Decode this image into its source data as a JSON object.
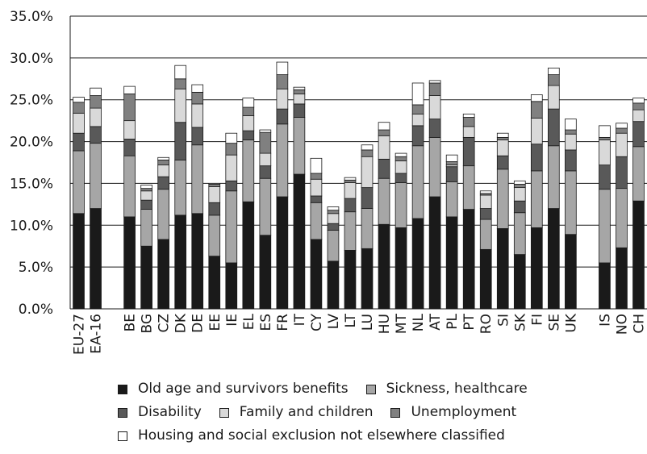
{
  "chart_data": {
    "type": "bar",
    "stacked": true,
    "title": "",
    "xlabel": "",
    "ylabel": "",
    "ylim": [
      0,
      35
    ],
    "yticks": [
      "0.0%",
      "5.0%",
      "10.0%",
      "15.0%",
      "20.0%",
      "25.0%",
      "30.0%",
      "35.0%"
    ],
    "grid": true,
    "legend_position": "bottom",
    "categories": [
      "EU-27",
      "EA-16",
      "",
      "BE",
      "BG",
      "CZ",
      "DK",
      "DE",
      "EE",
      "IE",
      "EL",
      "ES",
      "FR",
      "IT",
      "CY",
      "LV",
      "LT",
      "LU",
      "HU",
      "MT",
      "NL",
      "AT",
      "PL",
      "PT",
      "RO",
      "SI",
      "SK",
      "FI",
      "SE",
      "UK",
      "",
      "IS",
      "NO",
      "CH"
    ],
    "series": [
      {
        "name": "Old age and survivors benefits",
        "color": "#1a1a1a",
        "values": [
          11.4,
          12.0,
          null,
          11.0,
          7.5,
          8.3,
          11.2,
          11.4,
          6.3,
          5.5,
          12.8,
          8.8,
          13.4,
          16.1,
          8.3,
          5.7,
          7.0,
          7.2,
          10.1,
          9.7,
          10.8,
          13.4,
          11.0,
          11.9,
          7.1,
          9.6,
          6.5,
          9.7,
          12.0,
          8.9,
          null,
          5.5,
          7.3,
          12.9
        ]
      },
      {
        "name": "Sickness, healthcare",
        "color": "#a6a6a6",
        "values": [
          7.5,
          7.8,
          null,
          7.3,
          4.4,
          6.0,
          6.6,
          8.2,
          4.9,
          8.6,
          7.4,
          6.8,
          8.7,
          6.8,
          4.4,
          3.7,
          4.6,
          4.8,
          5.5,
          5.4,
          8.7,
          7.1,
          4.2,
          5.2,
          3.6,
          7.1,
          5.0,
          6.8,
          7.5,
          7.6,
          null,
          8.8,
          7.1,
          6.5
        ]
      },
      {
        "name": "Disability",
        "color": "#595959",
        "values": [
          2.1,
          2.0,
          null,
          2.0,
          1.1,
          1.5,
          4.5,
          2.1,
          1.5,
          1.2,
          1.1,
          1.5,
          1.8,
          1.6,
          0.8,
          0.8,
          1.6,
          2.5,
          2.3,
          1.1,
          2.4,
          2.2,
          1.8,
          3.4,
          1.3,
          1.6,
          1.4,
          3.2,
          4.4,
          2.5,
          null,
          2.9,
          3.8,
          3.0
        ]
      },
      {
        "name": "Family and children",
        "color": "#d9d9d9",
        "values": [
          2.4,
          2.2,
          null,
          2.2,
          1.1,
          1.4,
          4.0,
          2.8,
          1.9,
          3.1,
          1.8,
          1.5,
          2.4,
          1.2,
          2.0,
          1.2,
          1.9,
          3.7,
          2.8,
          1.5,
          1.4,
          2.8,
          0.2,
          1.3,
          1.6,
          1.9,
          1.6,
          3.1,
          2.8,
          1.9,
          null,
          3.0,
          2.8,
          1.4
        ]
      },
      {
        "name": "Unemployment",
        "color": "#808080",
        "values": [
          1.3,
          1.5,
          null,
          3.2,
          0.3,
          0.6,
          1.2,
          1.4,
          0.3,
          1.4,
          1.0,
          2.5,
          1.7,
          0.5,
          0.7,
          0.4,
          0.3,
          0.8,
          0.7,
          0.5,
          1.1,
          1.5,
          0.4,
          1.1,
          0.2,
          0.3,
          0.4,
          2.0,
          1.3,
          0.5,
          null,
          0.3,
          0.6,
          0.8
        ]
      },
      {
        "name": "Housing and social exclusion not elsewhere classified",
        "color": "#ffffff",
        "values": [
          0.6,
          0.9,
          null,
          0.9,
          0.4,
          0.3,
          1.6,
          0.9,
          0.1,
          1.2,
          1.1,
          0.3,
          1.5,
          0.3,
          1.8,
          0.4,
          0.3,
          0.6,
          0.9,
          0.4,
          2.6,
          0.3,
          0.8,
          0.4,
          0.3,
          0.5,
          0.4,
          0.8,
          0.8,
          1.3,
          null,
          1.4,
          0.6,
          0.6
        ]
      }
    ]
  }
}
